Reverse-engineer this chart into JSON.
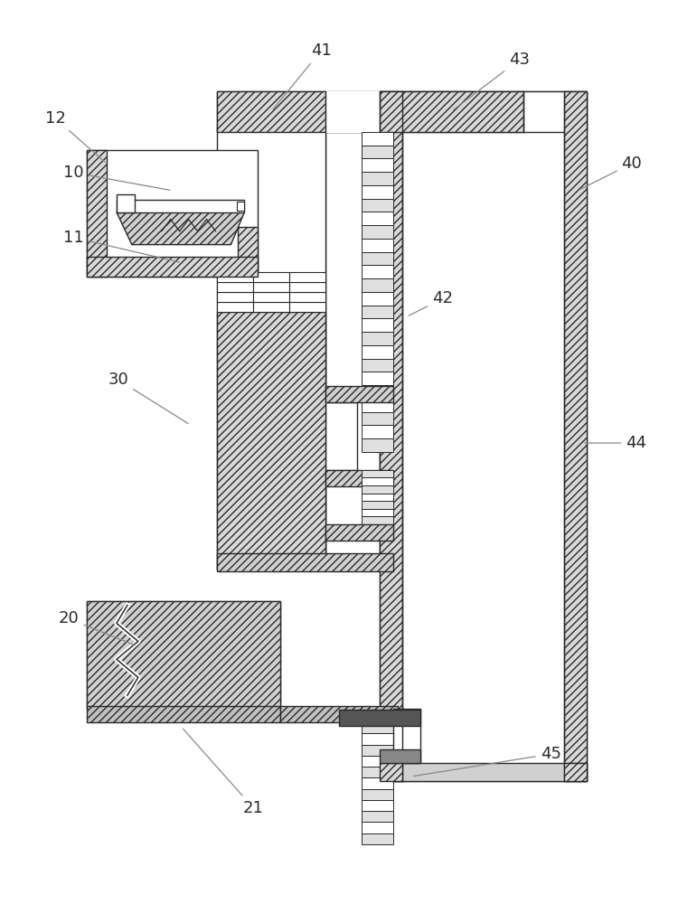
{
  "bg_color": "#ffffff",
  "lc": "#2a2a2a",
  "hc": "#cccccc",
  "lw": 1.0,
  "label_fs": 13,
  "label_color": "#2a2a2a",
  "arrow_color": "#888888"
}
